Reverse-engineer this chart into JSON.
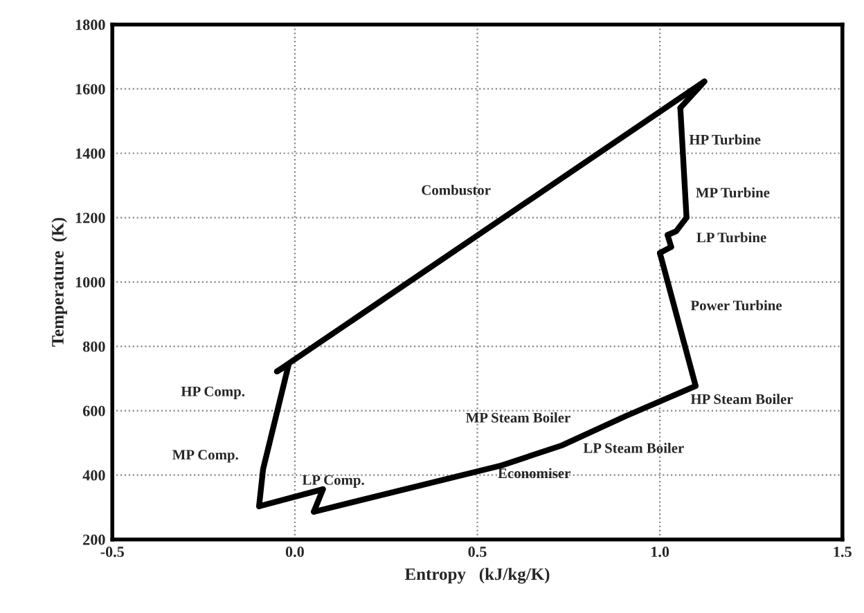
{
  "chart_data": {
    "type": "line",
    "xlabel": "Entropy   (kJ/kg/K)",
    "ylabel": "Temperature  (K)",
    "series": [
      {
        "color": "#000000",
        "x": [
          -0.098,
          0.077
        ],
        "values": [
          303,
          356
        ]
      },
      {
        "color": "#000000",
        "x": [
          0.052,
          0.077
        ],
        "values": [
          286,
          356
        ]
      },
      {
        "color": "#000000",
        "x": [
          0.052,
          0.566,
          0.731,
          0.906,
          1.098
        ],
        "values": [
          286,
          430,
          492,
          583,
          677
        ]
      },
      {
        "color": "#000000",
        "x": [
          1.0,
          1.098
        ],
        "values": [
          1090,
          677
        ]
      },
      {
        "color": "#000000",
        "x": [
          1.0,
          1.031
        ],
        "values": [
          1090,
          1109
        ]
      },
      {
        "color": "#000000",
        "x": [
          1.021,
          1.031
        ],
        "values": [
          1146,
          1109
        ]
      },
      {
        "color": "#000000",
        "x": [
          1.021,
          1.045,
          1.073
        ],
        "values": [
          1146,
          1158,
          1200
        ]
      },
      {
        "color": "#000000",
        "x": [
          1.056,
          1.073
        ],
        "values": [
          1541,
          1200
        ]
      },
      {
        "color": "#000000",
        "x": [
          1.056,
          1.122
        ],
        "values": [
          1541,
          1623
        ]
      },
      {
        "color": "#000000",
        "x": [
          -0.049,
          1.122
        ],
        "values": [
          722,
          1623
        ]
      },
      {
        "color": "#000000",
        "x": [
          -0.049,
          -0.017
        ],
        "values": [
          722,
          743
        ]
      },
      {
        "color": "#000000",
        "x": [
          -0.098,
          -0.087,
          -0.017
        ],
        "values": [
          303,
          418,
          743
        ]
      }
    ],
    "xlim": [
      -0.5,
      1.5
    ],
    "ylim": [
      200,
      1800
    ],
    "xticks": [
      -0.5,
      {
        "value": 0.0,
        "label": "0.0"
      },
      0.5,
      {
        "value": 1.0,
        "label": "1.0"
      },
      1.5
    ],
    "yticks": [
      200,
      400,
      600,
      800,
      1000,
      1200,
      1400,
      1600,
      1800
    ],
    "grid": true,
    "marker": "none",
    "line_style": "solid",
    "annotations": [
      "Combustor",
      "HP Turbine",
      "MP Turbine",
      "LP Turbine",
      "Power Turbine",
      "HP Steam Boiler",
      "MP Steam Boiler",
      "LP Steam Boiler",
      "Economiser",
      "HP Comp.",
      "MP Comp.",
      "LP Comp."
    ]
  }
}
